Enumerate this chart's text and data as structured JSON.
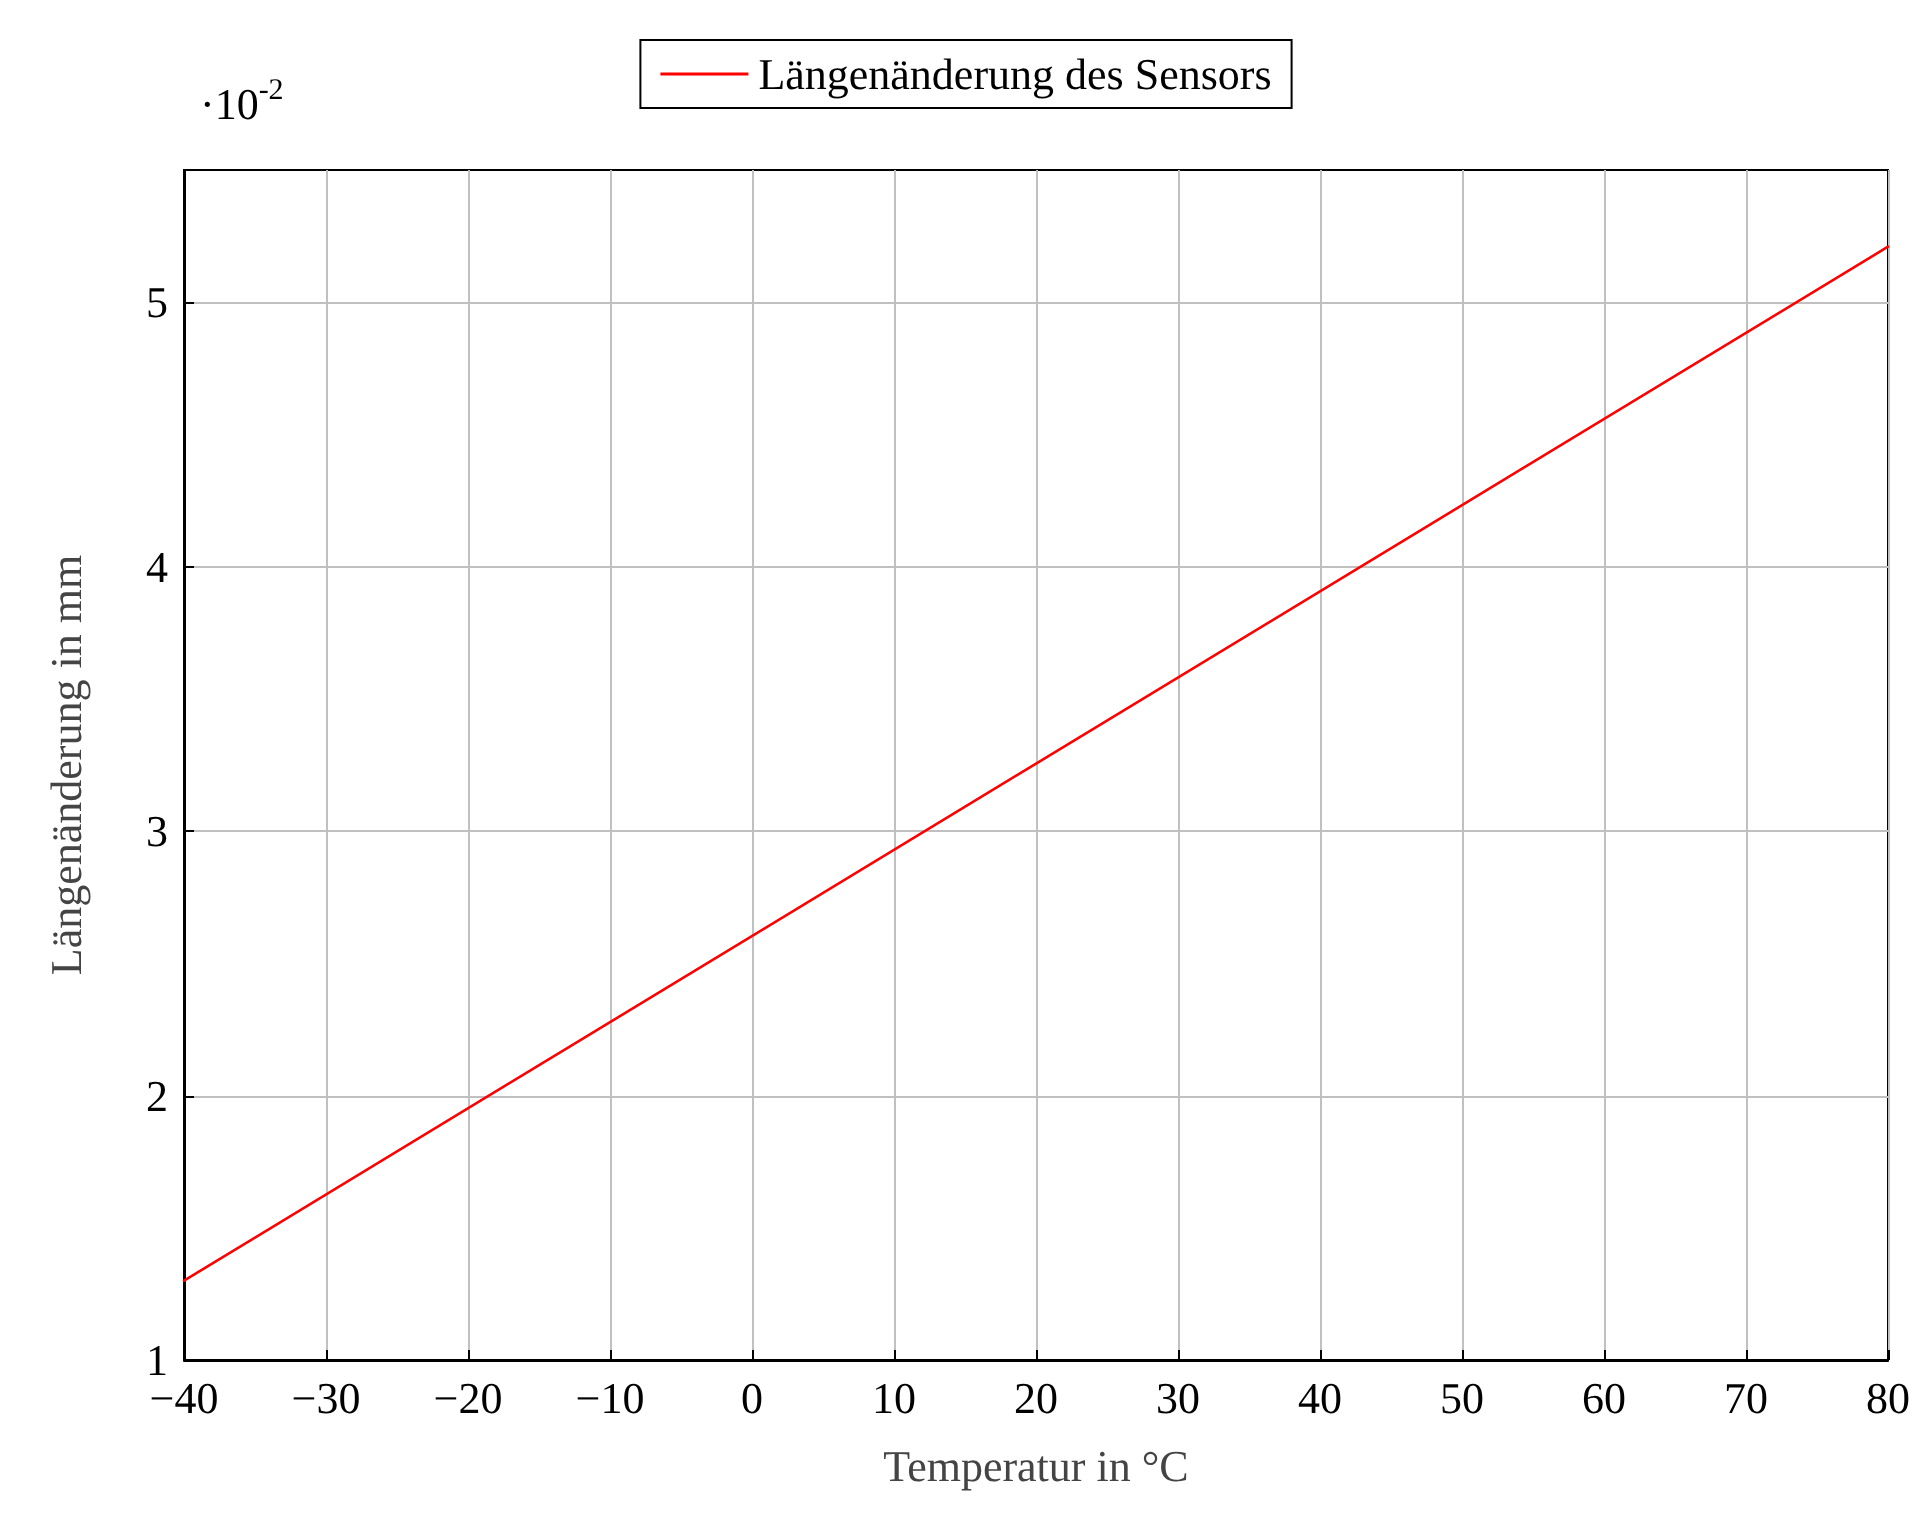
{
  "chart_data": {
    "type": "line",
    "xlabel": "Temperatur in °C",
    "ylabel": "Längenänderung in mm",
    "annotations": [
      "·10$^{-2}$"
    ],
    "x": [
      -40,
      80
    ],
    "series": [
      {
        "name": "Längenänderung des Sensors",
        "color": "#ff0000",
        "values": [
          1.3,
          5.21
        ]
      }
    ],
    "xlim": [
      -40,
      80
    ],
    "xticks": [
      {
        "value": -40,
        "label": "−40"
      },
      {
        "value": -30,
        "label": "−30"
      },
      {
        "value": -20,
        "label": "−20"
      },
      {
        "value": -10,
        "label": "−10"
      },
      0,
      10,
      20,
      30,
      40,
      50,
      60,
      70,
      80
    ],
    "ylim": [
      1,
      5.5
    ],
    "yticks": [
      1,
      2,
      3,
      4,
      5
    ],
    "grid": true,
    "legend": "top",
    "marker": "none",
    "line_style": "solid"
  }
}
